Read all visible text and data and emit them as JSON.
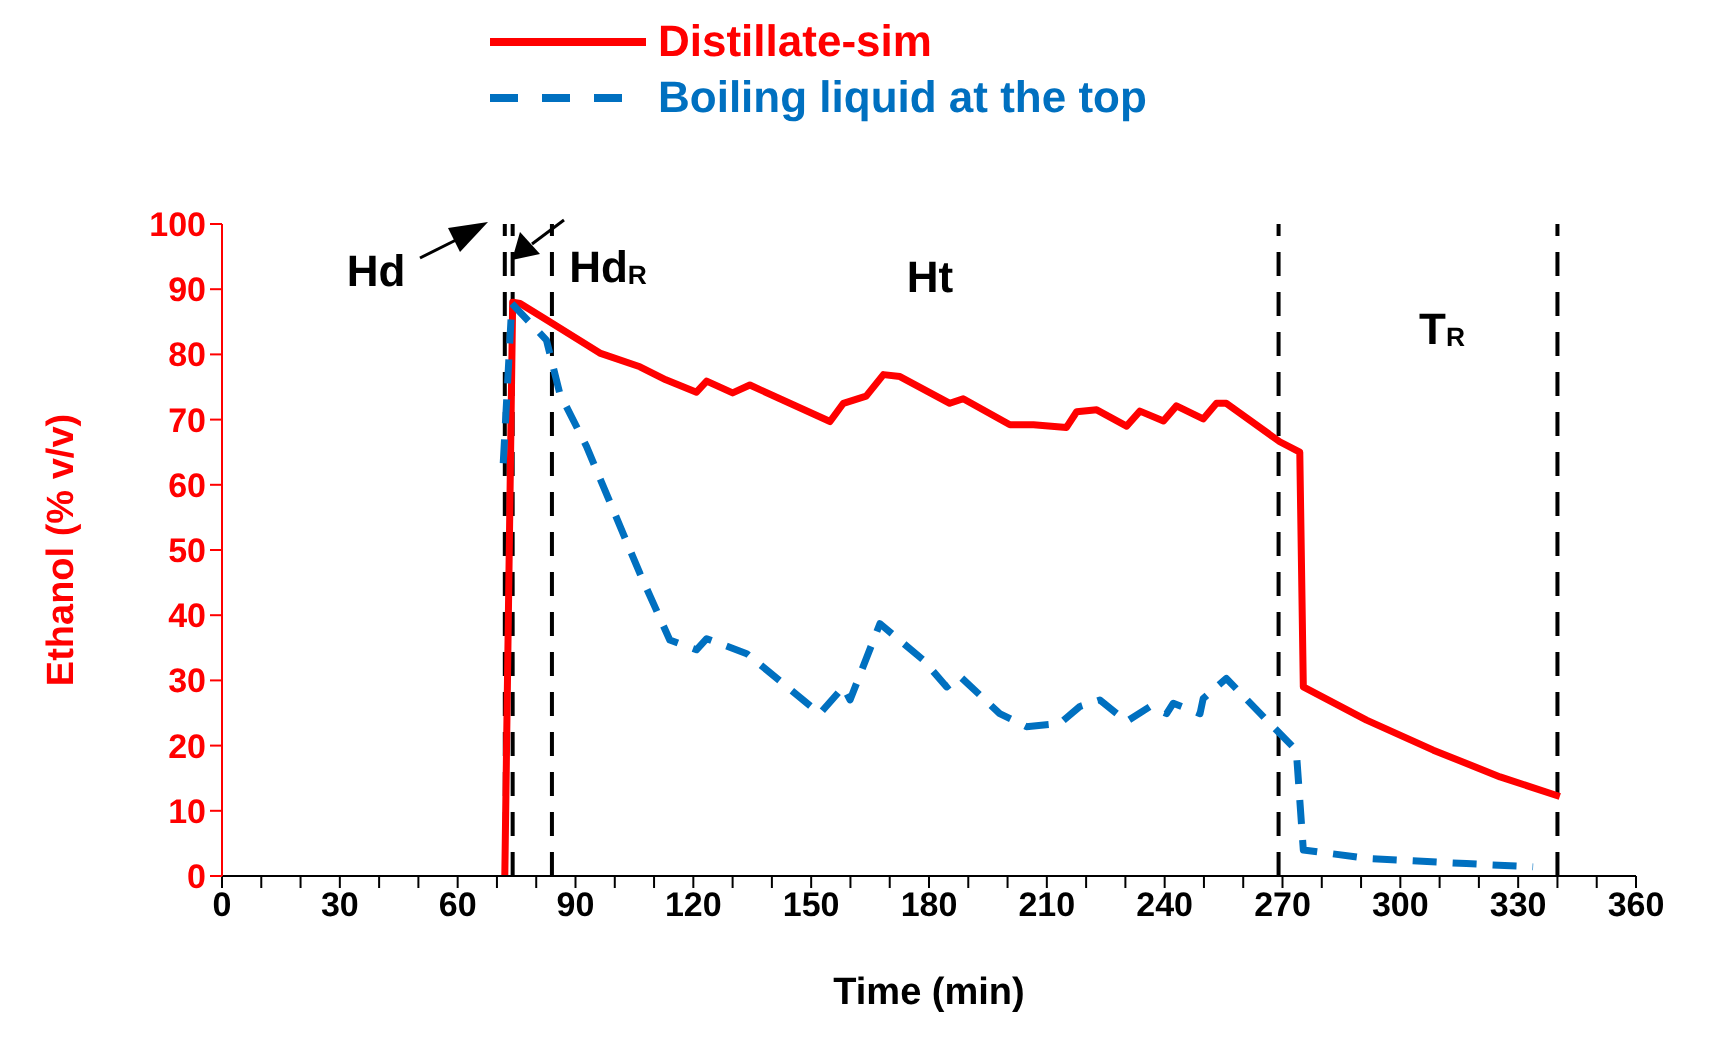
{
  "chart_data": {
    "type": "line",
    "xlabel": "Time (min)",
    "ylabel": "Ethanol  (% v/v)",
    "xlim": [
      0,
      360
    ],
    "ylim": [
      0,
      100
    ],
    "xticks": [
      0,
      {
        "value": 10,
        "label": null
      },
      {
        "value": 20,
        "label": null
      },
      30,
      {
        "value": 40,
        "label": null
      },
      {
        "value": 50,
        "label": null
      },
      60,
      {
        "value": 70,
        "label": null
      },
      {
        "value": 80,
        "label": null
      },
      90,
      {
        "value": 100,
        "label": null
      },
      {
        "value": 110,
        "label": null
      },
      120,
      {
        "value": 130,
        "label": null
      },
      {
        "value": 140,
        "label": null
      },
      150,
      {
        "value": 160,
        "label": null
      },
      {
        "value": 170,
        "label": null
      },
      180,
      {
        "value": 190,
        "label": null
      },
      {
        "value": 200,
        "label": null
      },
      210,
      {
        "value": 220,
        "label": null
      },
      {
        "value": 230,
        "label": null
      },
      240,
      {
        "value": 250,
        "label": null
      },
      {
        "value": 260,
        "label": null
      },
      270,
      {
        "value": 280,
        "label": null
      },
      {
        "value": 290,
        "label": null
      },
      300,
      {
        "value": 310,
        "label": null
      },
      {
        "value": 320,
        "label": null
      },
      330,
      {
        "value": 340,
        "label": null
      },
      {
        "value": 350,
        "label": null
      },
      360
    ],
    "yticks": [
      0,
      10,
      20,
      30,
      40,
      50,
      60,
      70,
      80,
      90,
      100
    ],
    "grid": false,
    "legend": "top",
    "marker": "none",
    "series": [
      {
        "name": "Distillate-sim",
        "color": "#ff0000",
        "line_style": "solid",
        "x": [
          72,
          74,
          75.9,
          82.6,
          96.2,
          106.4,
          113,
          120.8,
          123.4,
          130,
          134.4,
          154.8,
          158.2,
          164,
          168.4,
          172.6,
          185.3,
          188.7,
          200.6,
          206.6,
          215,
          217.6,
          222.7,
          230.3,
          233.7,
          239.7,
          243,
          249.8,
          253.2,
          255.7,
          269.3,
          274.4,
          275.3,
          291.4,
          308.4,
          325.4,
          340.6
        ],
        "values": [
          0,
          88,
          87.8,
          85.3,
          80.2,
          78.1,
          76.1,
          74.2,
          75.9,
          74.1,
          75.3,
          69.7,
          72.5,
          73.6,
          76.9,
          76.6,
          72.5,
          73.2,
          69.2,
          69.2,
          68.8,
          71.2,
          71.5,
          69,
          71.3,
          69.8,
          72.1,
          70.1,
          72.5,
          72.5,
          66.6,
          65,
          29,
          23.9,
          19.3,
          15.2,
          12.2
        ]
      },
      {
        "name": "Boiling liquid at the top",
        "color": "#0070c0",
        "line_style": "dashed",
        "x": [
          71.6,
          73.8,
          82.6,
          86,
          92.8,
          106.4,
          114,
          120.8,
          123.4,
          133.6,
          152.2,
          158.2,
          159.9,
          167.5,
          178.6,
          184.5,
          187.9,
          198,
          204.8,
          213.3,
          218.4,
          223.5,
          230.3,
          236.3,
          240.5,
          242.2,
          249,
          249.8,
          255.7,
          267.6,
          273.5,
          275.3,
          291.4,
          316.8,
          333.8
        ],
        "values": [
          63.3,
          87.8,
          82.2,
          74,
          65.9,
          46.4,
          36.2,
          34.7,
          36.4,
          34.1,
          24.9,
          29,
          27,
          38.7,
          33.1,
          29,
          30.6,
          24.9,
          22.9,
          23.4,
          26,
          27,
          23.7,
          26,
          24.9,
          26.5,
          24.9,
          27.2,
          30.3,
          22.9,
          19.3,
          4,
          2.7,
          1.9,
          1.4
        ]
      }
    ],
    "ref_lines": [
      {
        "axis": "x",
        "value": 72,
        "color": "#000000",
        "line_style": "dashed"
      },
      {
        "axis": "x",
        "value": 74,
        "color": "#000000",
        "line_style": "dashed"
      },
      {
        "axis": "x",
        "value": 84,
        "color": "#000000",
        "line_style": "dashed"
      },
      {
        "axis": "x",
        "value": 269,
        "color": "#000000",
        "line_style": "dashed"
      },
      {
        "axis": "x",
        "value": 340,
        "color": "#000000",
        "line_style": "dashed"
      }
    ],
    "annotations": [
      "Hd",
      "Hd$_{R}$",
      "Ht",
      "T$_{R}$"
    ]
  }
}
